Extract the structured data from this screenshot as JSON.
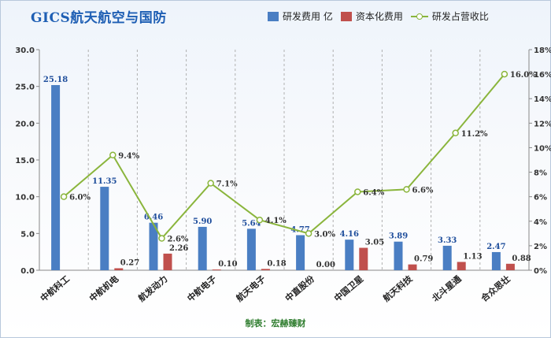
{
  "header": {
    "title": "GICS航天航空与国防"
  },
  "legend": {
    "rd": "研发费用 亿",
    "cap": "资本化费用",
    "ratio": "研发占营收比"
  },
  "footer": {
    "credit": "制表：宏赫臻财"
  },
  "colors": {
    "rd": "#4a7ec3",
    "cap": "#c0504d",
    "line": "#8ab53c",
    "rd_label": "#1f4e9c",
    "grid": "#b0b0b0"
  },
  "chart_data": {
    "type": "bar",
    "title": "GICS航天航空与国防",
    "categories": [
      "中航科工",
      "中航机电",
      "航发动力",
      "中航电子",
      "航天电子",
      "中直股份",
      "中国卫星",
      "航天科技",
      "北斗星通",
      "合众思壮"
    ],
    "series": [
      {
        "name": "研发费用 亿",
        "type": "bar",
        "axis": "left",
        "values": [
          25.18,
          11.35,
          6.46,
          5.9,
          5.64,
          4.77,
          4.16,
          3.89,
          3.33,
          2.47
        ]
      },
      {
        "name": "资本化费用",
        "type": "bar",
        "axis": "left",
        "values": [
          0.0,
          0.27,
          2.26,
          0.1,
          0.18,
          0.0,
          3.05,
          0.79,
          1.13,
          0.88
        ]
      },
      {
        "name": "研发占营收比",
        "type": "line",
        "axis": "right",
        "values": [
          6.0,
          9.4,
          2.6,
          7.1,
          4.1,
          3.0,
          6.4,
          6.6,
          11.2,
          16.0
        ]
      }
    ],
    "data_labels": {
      "rd": [
        "25.18",
        "11.35",
        "6.46",
        "5.90",
        "5.64",
        "4.77",
        "4.16",
        "3.89",
        "3.33",
        "2.47"
      ],
      "cap": [
        "",
        "0.27",
        "2.26",
        "0.10",
        "0.18",
        "0.00",
        "3.05",
        "0.79",
        "1.13",
        "0.88"
      ],
      "ratio": [
        "6.0%",
        "9.4%",
        "2.6%",
        "7.1%",
        "4.1%",
        "3.0%",
        "6.4%",
        "6.6%",
        "11.2%",
        "16.0%"
      ]
    },
    "y_left": {
      "min": 0,
      "max": 30,
      "ticks": [
        "0.0",
        "5.0",
        "10.0",
        "15.0",
        "20.0",
        "25.0",
        "30.0"
      ]
    },
    "y_right": {
      "min": 0,
      "max": 18,
      "ticks": [
        "0%",
        "2%",
        "4%",
        "6%",
        "8%",
        "10%",
        "12%",
        "14%",
        "16%",
        "18%"
      ]
    },
    "grid": "vertical-dashed",
    "legend_position": "top-right"
  }
}
